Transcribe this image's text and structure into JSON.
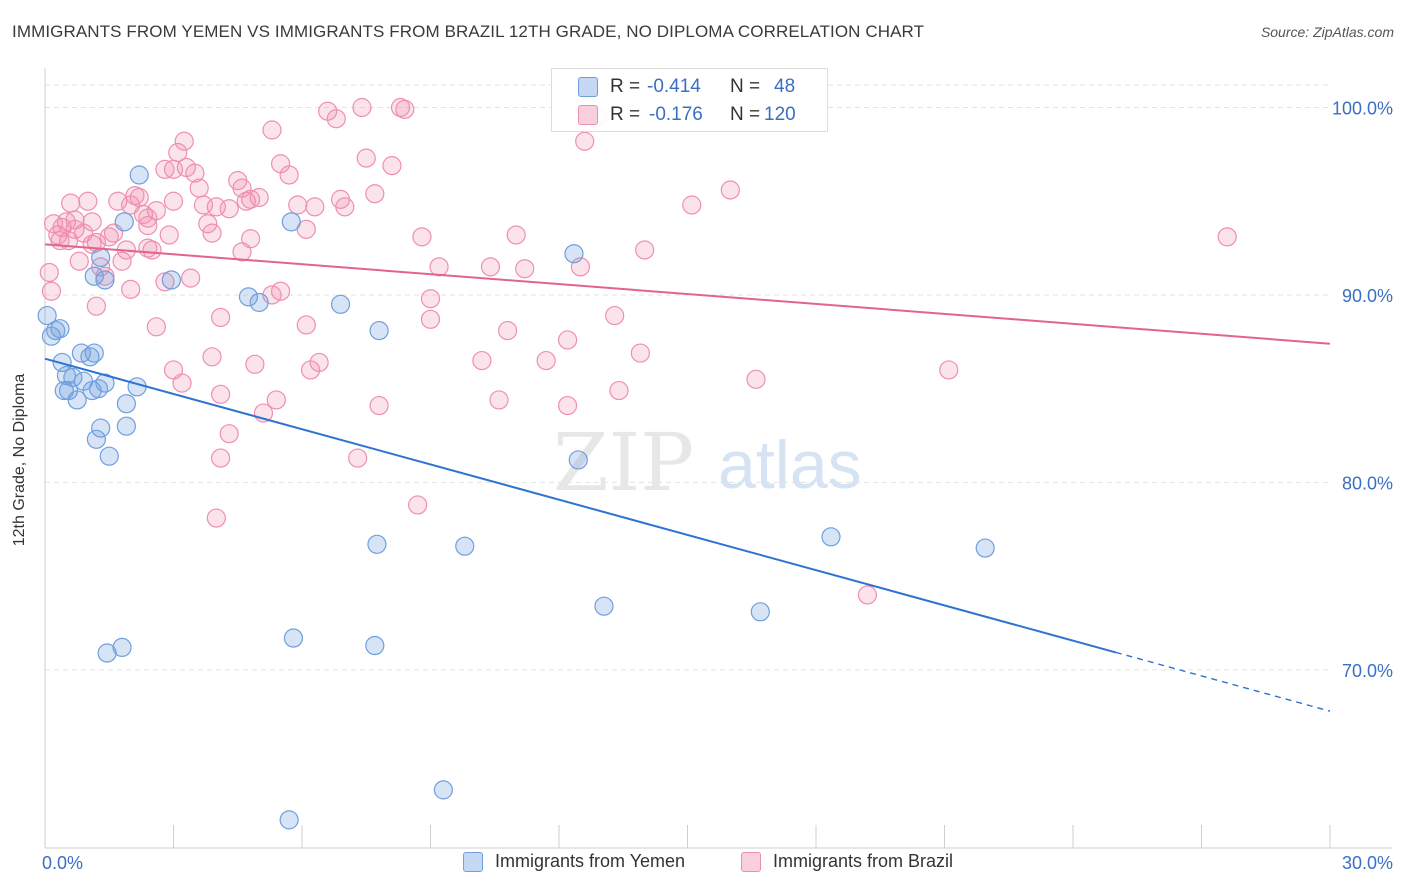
{
  "header": {
    "title": "IMMIGRANTS FROM YEMEN VS IMMIGRANTS FROM BRAZIL 12TH GRADE, NO DIPLOMA CORRELATION CHART",
    "source": "Source: ZipAtlas.com"
  },
  "watermark": {
    "zip": "ZIP",
    "atlas": "atlas"
  },
  "legend_stats": [
    {
      "r_label": "R =",
      "r_value": "-0.414",
      "n_label": "N =",
      "n_value": "48"
    },
    {
      "r_label": "R =",
      "r_value": "-0.176",
      "n_label": "N =",
      "n_value": "120"
    }
  ],
  "chart_data": {
    "type": "scatter",
    "title": "IMMIGRANTS FROM YEMEN VS IMMIGRANTS FROM BRAZIL 12TH GRADE, NO DIPLOMA CORRELATION CHART",
    "xlabel": "",
    "ylabel": "12th Grade, No Diploma",
    "xlim": [
      0,
      30
    ],
    "ylim": [
      60.5,
      102
    ],
    "x_tick_labels": [
      "0.0%",
      "30.0%"
    ],
    "y_ticks": [
      70,
      80,
      90,
      100
    ],
    "y_tick_labels": [
      "70.0%",
      "80.0%",
      "90.0%",
      "100.0%"
    ],
    "grid": true,
    "legend_position": "bottom",
    "colors": {
      "yemen": "#6f9fde",
      "brazil": "#ef8fb0",
      "yemen_line": "#2f73d0",
      "brazil_line": "#e0648e",
      "tick_label": "#3a6fc4"
    },
    "series": [
      {
        "name": "Immigrants from Yemen",
        "r": -0.414,
        "n": 48,
        "trend": {
          "x_start": 0,
          "y_start": 86.6,
          "x_solid_end": 25,
          "x_end": 30,
          "y_end": 67.8
        },
        "points": [
          [
            0.05,
            88.9
          ],
          [
            0.15,
            87.8
          ],
          [
            0.25,
            88.1
          ],
          [
            0.35,
            88.2
          ],
          [
            0.4,
            86.4
          ],
          [
            0.5,
            85.7
          ],
          [
            0.45,
            84.9
          ],
          [
            0.55,
            84.9
          ],
          [
            0.65,
            85.6
          ],
          [
            0.75,
            84.4
          ],
          [
            0.85,
            86.9
          ],
          [
            1.05,
            86.7
          ],
          [
            1.15,
            86.9
          ],
          [
            1.1,
            84.9
          ],
          [
            0.9,
            85.4
          ],
          [
            1.25,
            85.0
          ],
          [
            1.4,
            85.3
          ],
          [
            1.9,
            84.2
          ],
          [
            2.15,
            85.1
          ],
          [
            1.9,
            83.0
          ],
          [
            1.3,
            82.9
          ],
          [
            1.5,
            81.4
          ],
          [
            1.2,
            82.3
          ],
          [
            1.4,
            90.8
          ],
          [
            1.3,
            92.0
          ],
          [
            1.85,
            93.9
          ],
          [
            2.2,
            96.4
          ],
          [
            2.95,
            90.8
          ],
          [
            4.75,
            89.9
          ],
          [
            5.0,
            89.6
          ],
          [
            5.75,
            93.9
          ],
          [
            6.9,
            89.5
          ],
          [
            7.8,
            88.1
          ],
          [
            7.75,
            76.7
          ],
          [
            9.8,
            76.6
          ],
          [
            12.35,
            92.2
          ],
          [
            12.45,
            81.2
          ],
          [
            13.05,
            73.4
          ],
          [
            16.7,
            73.1
          ],
          [
            18.35,
            77.1
          ],
          [
            21.95,
            76.5
          ],
          [
            5.8,
            71.7
          ],
          [
            7.7,
            71.3
          ],
          [
            1.8,
            71.2
          ],
          [
            1.45,
            70.9
          ],
          [
            9.3,
            63.6
          ],
          [
            5.7,
            62.0
          ],
          [
            1.15,
            91.0
          ]
        ]
      },
      {
        "name": "Immigrants from Brazil",
        "r": -0.176,
        "n": 120,
        "trend": {
          "x_start": 0,
          "y_start": 92.7,
          "x_end": 30,
          "y_end": 87.4
        },
        "points": [
          [
            0.1,
            91.2
          ],
          [
            0.15,
            90.2
          ],
          [
            0.3,
            93.2
          ],
          [
            0.4,
            93.6
          ],
          [
            0.5,
            93.9
          ],
          [
            0.55,
            92.9
          ],
          [
            0.7,
            94.0
          ],
          [
            0.7,
            93.5
          ],
          [
            0.8,
            91.8
          ],
          [
            0.9,
            93.3
          ],
          [
            1.0,
            95.0
          ],
          [
            1.1,
            93.9
          ],
          [
            1.1,
            92.7
          ],
          [
            1.2,
            92.8
          ],
          [
            1.3,
            91.5
          ],
          [
            1.4,
            91.0
          ],
          [
            1.6,
            93.3
          ],
          [
            1.7,
            95.0
          ],
          [
            1.8,
            91.8
          ],
          [
            1.9,
            92.4
          ],
          [
            2.0,
            94.8
          ],
          [
            2.1,
            95.3
          ],
          [
            2.2,
            95.2
          ],
          [
            2.3,
            94.3
          ],
          [
            2.4,
            93.7
          ],
          [
            2.5,
            92.4
          ],
          [
            2.6,
            94.5
          ],
          [
            2.8,
            96.7
          ],
          [
            2.9,
            93.2
          ],
          [
            3.0,
            95.0
          ],
          [
            3.1,
            97.6
          ],
          [
            3.25,
            98.2
          ],
          [
            3.3,
            96.8
          ],
          [
            3.5,
            96.5
          ],
          [
            3.6,
            95.7
          ],
          [
            3.7,
            94.8
          ],
          [
            3.8,
            93.8
          ],
          [
            3.9,
            93.3
          ],
          [
            4.0,
            94.7
          ],
          [
            4.3,
            94.6
          ],
          [
            4.5,
            96.1
          ],
          [
            4.6,
            95.7
          ],
          [
            4.7,
            95.0
          ],
          [
            4.8,
            95.1
          ],
          [
            5.0,
            95.2
          ],
          [
            5.3,
            98.8
          ],
          [
            5.5,
            97.0
          ],
          [
            5.7,
            96.4
          ],
          [
            5.9,
            94.8
          ],
          [
            6.1,
            93.5
          ],
          [
            6.3,
            94.7
          ],
          [
            6.6,
            99.8
          ],
          [
            6.8,
            99.4
          ],
          [
            7.0,
            94.7
          ],
          [
            7.5,
            97.3
          ],
          [
            7.7,
            95.4
          ],
          [
            8.1,
            96.9
          ],
          [
            8.4,
            99.9
          ],
          [
            8.8,
            93.1
          ],
          [
            8.3,
            100.0
          ],
          [
            7.4,
            100.0
          ],
          [
            3.0,
            96.7
          ],
          [
            4.6,
            92.3
          ],
          [
            2.0,
            90.3
          ],
          [
            2.4,
            92.5
          ],
          [
            2.8,
            90.7
          ],
          [
            3.4,
            90.9
          ],
          [
            4.1,
            88.8
          ],
          [
            5.3,
            90.0
          ],
          [
            5.5,
            90.2
          ],
          [
            6.1,
            88.4
          ],
          [
            9.0,
            89.8
          ],
          [
            9.0,
            88.7
          ],
          [
            10.8,
            88.1
          ],
          [
            11.7,
            86.5
          ],
          [
            12.2,
            87.6
          ],
          [
            12.5,
            91.5
          ],
          [
            13.3,
            88.9
          ],
          [
            13.9,
            86.9
          ],
          [
            14.0,
            92.4
          ],
          [
            15.1,
            94.8
          ],
          [
            16.0,
            95.6
          ],
          [
            16.6,
            85.5
          ],
          [
            21.1,
            86.0
          ],
          [
            27.6,
            93.1
          ],
          [
            19.2,
            74.0
          ],
          [
            10.4,
            91.5
          ],
          [
            11.2,
            91.4
          ],
          [
            1.2,
            89.4
          ],
          [
            2.6,
            88.3
          ],
          [
            3.0,
            86.0
          ],
          [
            3.2,
            85.3
          ],
          [
            3.9,
            86.7
          ],
          [
            4.1,
            84.7
          ],
          [
            4.9,
            86.3
          ],
          [
            5.1,
            83.7
          ],
          [
            5.4,
            84.4
          ],
          [
            6.2,
            86.0
          ],
          [
            6.4,
            86.4
          ],
          [
            7.3,
            81.3
          ],
          [
            7.8,
            84.1
          ],
          [
            8.7,
            78.8
          ],
          [
            10.6,
            84.4
          ],
          [
            12.2,
            84.1
          ],
          [
            13.4,
            84.9
          ],
          [
            4.3,
            82.6
          ],
          [
            4.1,
            81.3
          ],
          [
            4.0,
            78.1
          ],
          [
            10.2,
            86.5
          ],
          [
            11.0,
            93.2
          ],
          [
            12.6,
            98.2
          ],
          [
            12.9,
            99.5
          ],
          [
            0.6,
            94.9
          ],
          [
            0.35,
            92.9
          ],
          [
            0.2,
            93.8
          ],
          [
            1.5,
            93.1
          ],
          [
            2.4,
            94.1
          ],
          [
            4.8,
            93.0
          ],
          [
            6.9,
            95.1
          ],
          [
            9.2,
            91.5
          ]
        ]
      }
    ]
  }
}
